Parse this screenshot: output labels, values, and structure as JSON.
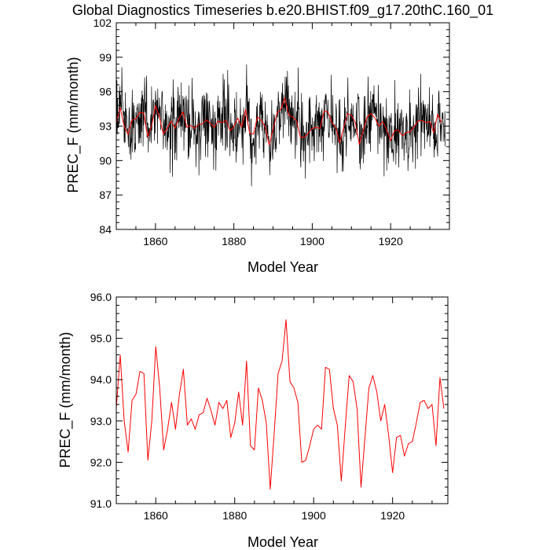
{
  "title": "Global Diagnostics Timeseries b.e20.BHIST.f09_g17.20thC.160_01",
  "colors": {
    "monthly": "#000000",
    "annual": "#ff0000",
    "axis": "#000000"
  },
  "chart_data": [
    {
      "type": "line",
      "xlabel": "Model Year",
      "ylabel": "PREC_F (mm/month)",
      "xlim": [
        1850,
        1935
      ],
      "ylim": [
        84,
        102
      ],
      "xticks": [
        1860,
        1880,
        1900,
        1920
      ],
      "yticks": [
        84,
        87,
        90,
        93,
        96,
        99,
        102
      ],
      "ytick_labels": [
        "84",
        "87",
        "90",
        "93",
        "96",
        "99",
        "102"
      ],
      "grid": false,
      "series": [
        {
          "color": "#000000",
          "monthly": true,
          "x_start": 1850,
          "x_step": 0.0833333,
          "values": []
        },
        {
          "color": "#ff0000",
          "x_start": 1850,
          "x_step": 1,
          "values": [
            93.3,
            94.6,
            93.0,
            92.25,
            93.5,
            93.65,
            94.2,
            94.15,
            92.05,
            93.0,
            94.8,
            93.8,
            92.3,
            92.8,
            93.45,
            92.8,
            93.65,
            94.25,
            92.9,
            93.05,
            92.8,
            93.15,
            93.2,
            93.55,
            93.25,
            92.9,
            93.45,
            93.3,
            93.5,
            92.6,
            92.95,
            93.7,
            92.9,
            94.45,
            92.4,
            92.3,
            93.8,
            93.5,
            92.95,
            91.35,
            92.7,
            94.15,
            94.45,
            95.45,
            93.95,
            93.8,
            93.45,
            92.0,
            92.05,
            92.4,
            92.8,
            92.9,
            92.8,
            94.3,
            94.25,
            93.3,
            92.9,
            91.55,
            92.85,
            94.1,
            93.95,
            93.3,
            91.4,
            92.6,
            93.8,
            94.1,
            93.7,
            93.0,
            93.4,
            92.65,
            91.75,
            92.6,
            92.65,
            92.15,
            92.45,
            92.5,
            92.95,
            93.45,
            93.5,
            93.3,
            93.4,
            92.4,
            94.05,
            93.3
          ]
        }
      ]
    },
    {
      "type": "line",
      "xlabel": "Model Year",
      "ylabel": "PREC_F (mm/month)",
      "xlim": [
        1850,
        1934
      ],
      "ylim": [
        91,
        96
      ],
      "xticks": [
        1860,
        1880,
        1900,
        1920
      ],
      "yticks": [
        91,
        92,
        93,
        94,
        95,
        96
      ],
      "ytick_labels": [
        "91.0",
        "92.0",
        "93.0",
        "94.0",
        "95.0",
        "96.0"
      ],
      "grid": false,
      "series": [
        {
          "color": "#ff0000",
          "x_start": 1850,
          "x_step": 1,
          "values": [
            93.3,
            94.6,
            93.0,
            92.25,
            93.5,
            93.65,
            94.2,
            94.15,
            92.05,
            93.0,
            94.8,
            93.8,
            92.3,
            92.8,
            93.45,
            92.8,
            93.65,
            94.25,
            92.9,
            93.05,
            92.8,
            93.15,
            93.2,
            93.55,
            93.25,
            92.9,
            93.45,
            93.3,
            93.5,
            92.6,
            92.95,
            93.7,
            92.9,
            94.45,
            92.4,
            92.3,
            93.8,
            93.5,
            92.95,
            91.35,
            92.7,
            94.15,
            94.45,
            95.45,
            93.95,
            93.8,
            93.45,
            92.0,
            92.05,
            92.4,
            92.8,
            92.9,
            92.8,
            94.3,
            94.25,
            93.3,
            92.9,
            91.55,
            92.85,
            94.1,
            93.95,
            93.3,
            91.4,
            92.6,
            93.8,
            94.1,
            93.7,
            93.0,
            93.4,
            92.65,
            91.75,
            92.6,
            92.65,
            92.15,
            92.45,
            92.5,
            92.95,
            93.45,
            93.5,
            93.3,
            93.4,
            92.4,
            94.05,
            93.3
          ]
        }
      ]
    }
  ]
}
